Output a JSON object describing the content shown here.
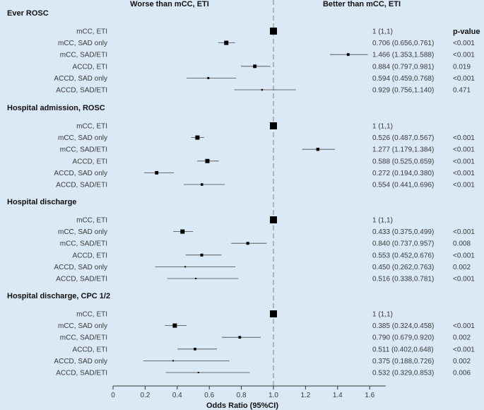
{
  "chart_data": {
    "type": "forest",
    "header_left": "Worse than mCC, ETI",
    "header_right": "Better than mCC, ETI",
    "pvalue_header": "p-value",
    "xlabel": "Odds Ratio (95%CI)",
    "xlim": [
      0,
      1.7
    ],
    "xticks": [
      0,
      0.2,
      0.4,
      0.6,
      0.8,
      1.0,
      1.2,
      1.4,
      1.6
    ],
    "xtick_labels": [
      "0",
      "0.2",
      "0.4",
      "0.6",
      "0.8",
      "1.0",
      "1.2",
      "1.4",
      "1.6"
    ],
    "reference_line": 1.0,
    "groups": [
      {
        "title": "Ever ROSC",
        "rows": [
          {
            "label": "mCC, ETI",
            "or": 1,
            "lo": 1,
            "hi": 1,
            "text": "1 (1,1)",
            "p": ""
          },
          {
            "label": "mCC, SAD only",
            "or": 0.706,
            "lo": 0.656,
            "hi": 0.761,
            "text": "0.706 (0.656,0.761)",
            "p": "<0.001"
          },
          {
            "label": "mCC, SAD/ETI",
            "or": 1.466,
            "lo": 1.353,
            "hi": 1.588,
            "text": "1.466 (1.353,1.588)",
            "p": "<0.001"
          },
          {
            "label": "ACCD, ETI",
            "or": 0.884,
            "lo": 0.797,
            "hi": 0.981,
            "text": "0.884 (0.797,0.981)",
            "p": "0.019"
          },
          {
            "label": "ACCD, SAD only",
            "or": 0.594,
            "lo": 0.459,
            "hi": 0.768,
            "text": "0.594 (0.459,0.768)",
            "p": "<0.001"
          },
          {
            "label": "ACCD, SAD/ETI",
            "or": 0.929,
            "lo": 0.756,
            "hi": 1.14,
            "text": "0.929 (0.756,1.140)",
            "p": "0.471"
          }
        ]
      },
      {
        "title": "Hospital admission, ROSC",
        "rows": [
          {
            "label": "mCC, ETI",
            "or": 1,
            "lo": 1,
            "hi": 1,
            "text": "1 (1,1)",
            "p": ""
          },
          {
            "label": "mCC, SAD only",
            "or": 0.526,
            "lo": 0.487,
            "hi": 0.567,
            "text": "0.526 (0.487,0.567)",
            "p": "<0.001"
          },
          {
            "label": "mCC, SAD/ETI",
            "or": 1.277,
            "lo": 1.179,
            "hi": 1.384,
            "text": "1.277 (1.179,1.384)",
            "p": "<0.001"
          },
          {
            "label": "ACCD, ETI",
            "or": 0.588,
            "lo": 0.525,
            "hi": 0.659,
            "text": "0.588 (0.525,0.659)",
            "p": "<0.001"
          },
          {
            "label": "ACCD, SAD only",
            "or": 0.272,
            "lo": 0.194,
            "hi": 0.38,
            "text": "0.272 (0.194,0.380)",
            "p": "<0.001"
          },
          {
            "label": "ACCD, SAD/ETI",
            "or": 0.554,
            "lo": 0.441,
            "hi": 0.696,
            "text": "0.554 (0.441,0.696)",
            "p": "<0.001"
          }
        ]
      },
      {
        "title": "Hospital discharge",
        "rows": [
          {
            "label": "mCC, ETI",
            "or": 1,
            "lo": 1,
            "hi": 1,
            "text": "1 (1,1)",
            "p": ""
          },
          {
            "label": "mCC, SAD only",
            "or": 0.433,
            "lo": 0.375,
            "hi": 0.499,
            "text": "0.433 (0.375,0.499)",
            "p": "<0.001"
          },
          {
            "label": "mCC, SAD/ETI",
            "or": 0.84,
            "lo": 0.737,
            "hi": 0.957,
            "text": "0.840 (0.737,0.957)",
            "p": "0.008"
          },
          {
            "label": "ACCD, ETI",
            "or": 0.553,
            "lo": 0.452,
            "hi": 0.676,
            "text": "0.553 (0.452,0.676)",
            "p": "<0.001"
          },
          {
            "label": "ACCD, SAD only",
            "or": 0.45,
            "lo": 0.262,
            "hi": 0.763,
            "text": "0.450 (0.262,0.763)",
            "p": "0.002"
          },
          {
            "label": "ACCD, SAD/ETI",
            "or": 0.516,
            "lo": 0.338,
            "hi": 0.781,
            "text": "0.516 (0.338,0.781)",
            "p": "<0.001"
          }
        ]
      },
      {
        "title": "Hospital discharge, CPC 1/2",
        "rows": [
          {
            "label": "mCC, ETI",
            "or": 1,
            "lo": 1,
            "hi": 1,
            "text": "1 (1,1)",
            "p": ""
          },
          {
            "label": "mCC, SAD only",
            "or": 0.385,
            "lo": 0.324,
            "hi": 0.458,
            "text": "0.385 (0.324,0.458)",
            "p": "<0.001"
          },
          {
            "label": "mCC, SAD/ETI",
            "or": 0.79,
            "lo": 0.679,
            "hi": 0.92,
            "text": "0.790 (0.679,0.920)",
            "p": "0.002"
          },
          {
            "label": "ACCD, ETI",
            "or": 0.511,
            "lo": 0.402,
            "hi": 0.648,
            "text": "0.511 (0.402,0.648)",
            "p": "<0.001"
          },
          {
            "label": "ACCD, SAD only",
            "or": 0.375,
            "lo": 0.188,
            "hi": 0.726,
            "text": "0.375 (0.188,0.726)",
            "p": "0.002"
          },
          {
            "label": "ACCD, SAD/ETI",
            "or": 0.532,
            "lo": 0.329,
            "hi": 0.853,
            "text": "0.532 (0.329,0.853)",
            "p": "0.006"
          }
        ]
      }
    ]
  }
}
